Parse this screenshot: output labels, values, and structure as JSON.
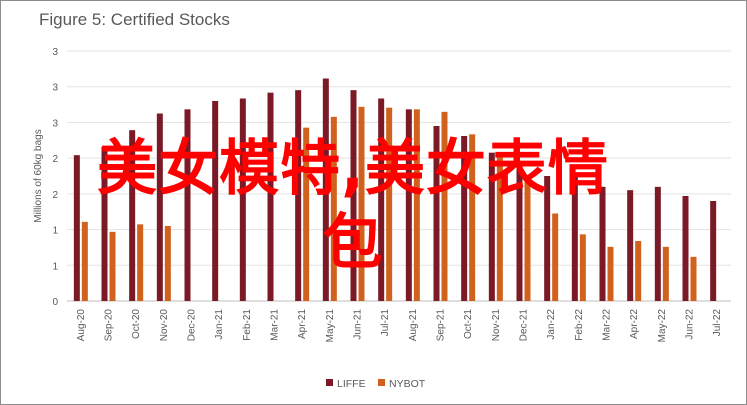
{
  "chart_data": {
    "type": "bar",
    "title": "Figure 5: Certified Stocks",
    "ylabel": "Millions of 60kg bags",
    "xlabel": "",
    "ylim": [
      0,
      3
    ],
    "y_tick_labels": [
      "0",
      "1",
      "1",
      "2",
      "2",
      "3",
      "3",
      "3"
    ],
    "categories": [
      "Aug-20",
      "Sep-20",
      "Oct-20",
      "Nov-20",
      "Dec-20",
      "Jan-21",
      "Feb-21",
      "Mar-21",
      "Apr-21",
      "May-21",
      "Jun-21",
      "Jul-21",
      "Aug-21",
      "Sep-21",
      "Oct-21",
      "Nov-21",
      "Dec-21",
      "Jan-22",
      "Feb-22",
      "Mar-22",
      "Apr-22",
      "May-22",
      "Jun-22",
      "Jul-22"
    ],
    "series": [
      {
        "name": "LIFFE",
        "color": "#7b1a26",
        "values": [
          1.75,
          1.85,
          2.05,
          2.25,
          2.3,
          2.4,
          2.43,
          2.5,
          2.53,
          2.67,
          2.53,
          2.43,
          2.3,
          2.1,
          1.98,
          1.78,
          1.66,
          1.5,
          1.5,
          1.37,
          1.33,
          1.37,
          1.26,
          1.2
        ]
      },
      {
        "name": "NYBOT",
        "color": "#d0621e",
        "values": [
          0.95,
          0.83,
          0.92,
          0.9,
          null,
          null,
          null,
          null,
          2.08,
          2.21,
          2.33,
          2.32,
          2.3,
          2.27,
          2.0,
          1.73,
          1.48,
          1.05,
          0.8,
          0.65,
          0.72,
          0.65,
          0.53,
          null
        ]
      }
    ],
    "grid": true,
    "legend": "bottom-center"
  },
  "overlay": {
    "line1": "美女模特,美女表情",
    "line2": "包"
  }
}
